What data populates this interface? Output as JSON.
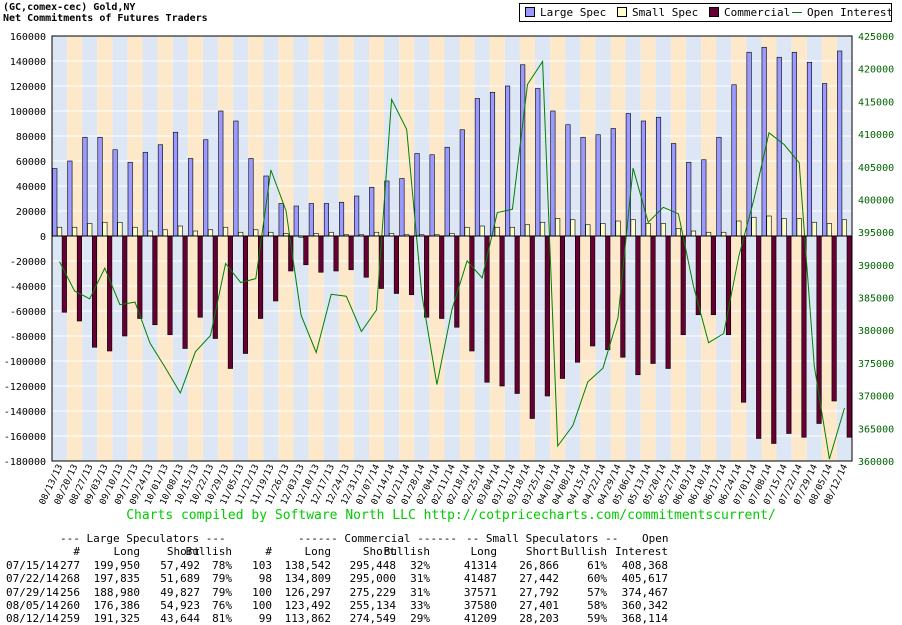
{
  "header": {
    "line1": "(GC,comex-cec) Gold,NY",
    "line2": "Net Commitments of Futures Traders"
  },
  "legend": [
    {
      "label": "Large Spec",
      "color": "#9999ff",
      "kind": "box"
    },
    {
      "label": "Small Spec",
      "color": "#ffffcc",
      "kind": "box"
    },
    {
      "label": "Commercial",
      "color": "#660033",
      "kind": "box"
    },
    {
      "label": "Open Interest",
      "color": "#008000",
      "kind": "line"
    }
  ],
  "credit": "Charts compiled by Software North LLC  http://cotpricecharts.com/commitmentscurrent/",
  "chart_data": {
    "type": "bar",
    "title": "(GC,comex-cec) Gold,NY",
    "subtitle": "Net Commitments of Futures Traders",
    "grid": true,
    "legend_position": "top-right",
    "left_axis": {
      "min": -180000,
      "max": 160000,
      "step": 20000
    },
    "right_axis": {
      "min": 360000,
      "max": 425000,
      "step": 5000
    },
    "x_labels": [
      "08/13/13",
      "08/20/13",
      "08/27/13",
      "09/03/13",
      "09/10/13",
      "09/17/13",
      "09/24/13",
      "10/01/13",
      "10/08/13",
      "10/15/13",
      "10/22/13",
      "10/29/13",
      "11/05/13",
      "11/12/13",
      "11/19/13",
      "11/26/13",
      "12/03/13",
      "12/10/13",
      "12/17/13",
      "12/24/13",
      "12/31/13",
      "01/07/14",
      "01/14/14",
      "01/21/14",
      "01/28/14",
      "02/04/14",
      "02/11/14",
      "02/18/14",
      "02/25/14",
      "03/04/14",
      "03/11/14",
      "03/18/14",
      "03/25/14",
      "04/01/14",
      "04/08/14",
      "04/15/14",
      "04/22/14",
      "04/29/14",
      "05/06/14",
      "05/13/14",
      "05/20/14",
      "05/27/14",
      "06/03/14",
      "06/10/14",
      "06/17/14",
      "06/24/14",
      "07/01/14",
      "07/08/14",
      "07/15/14",
      "07/22/14",
      "07/29/14",
      "08/05/14",
      "08/12/14"
    ],
    "series": [
      {
        "name": "Large Spec",
        "color": "#9999ff",
        "values": [
          54000,
          60000,
          79000,
          79000,
          69000,
          59000,
          67000,
          73000,
          83000,
          62000,
          77000,
          100000,
          92000,
          62000,
          48000,
          26000,
          24000,
          26000,
          26000,
          27000,
          32000,
          39000,
          44000,
          46000,
          66000,
          65000,
          71000,
          85000,
          110000,
          115000,
          120000,
          137000,
          118000,
          100000,
          89000,
          79000,
          81000,
          86000,
          98000,
          92000,
          95000,
          74000,
          59000,
          61000,
          79000,
          121000,
          147000,
          151000,
          143000,
          147000,
          139000,
          122000,
          148000
        ]
      },
      {
        "name": "Small Spec",
        "color": "#ffffcc",
        "values": [
          7000,
          7000,
          10000,
          11000,
          11000,
          7000,
          4000,
          5000,
          8000,
          4000,
          5000,
          7000,
          3000,
          5000,
          3000,
          2000,
          -1000,
          2000,
          3000,
          1000,
          1000,
          3000,
          2000,
          1000,
          1000,
          1000,
          2000,
          7000,
          8000,
          7000,
          7000,
          9000,
          11000,
          14000,
          13000,
          9000,
          10000,
          12000,
          13000,
          10000,
          10000,
          6000,
          4000,
          3000,
          3000,
          12000,
          15000,
          16000,
          14000,
          14000,
          11000,
          10000,
          13000
        ]
      },
      {
        "name": "Commercial",
        "color": "#660033",
        "values": [
          -61000,
          -68000,
          -89000,
          -92000,
          -80000,
          -66000,
          -71000,
          -79000,
          -90000,
          -65000,
          -82000,
          -106000,
          -94000,
          -66000,
          -52000,
          -28000,
          -23000,
          -29000,
          -28000,
          -27000,
          -33000,
          -42000,
          -46000,
          -47000,
          -65000,
          -66000,
          -73000,
          -92000,
          -117000,
          -120000,
          -126000,
          -146000,
          -128000,
          -114000,
          -101000,
          -88000,
          -91000,
          -97000,
          -111000,
          -102000,
          -106000,
          -79000,
          -63000,
          -63000,
          -79000,
          -133000,
          -162000,
          -166000,
          -158000,
          -161000,
          -150000,
          -132000,
          -161000
        ]
      },
      {
        "name": "Open Interest",
        "color": "#008000",
        "values": [
          390500,
          386000,
          384800,
          389500,
          383900,
          384300,
          378000,
          374300,
          370400,
          376700,
          379200,
          390200,
          387300,
          387900,
          404500,
          398300,
          382300,
          376600,
          385500,
          385200,
          379800,
          383100,
          415300,
          410700,
          385500,
          371700,
          383200,
          390600,
          388000,
          398000,
          398500,
          417600,
          421100,
          362300,
          365400,
          372100,
          374200,
          381900,
          404800,
          396500,
          398800,
          397800,
          386700,
          378100,
          379500,
          391300,
          400000,
          410200,
          408400,
          405600,
          374500,
          360300,
          368100
        ]
      }
    ]
  },
  "table": {
    "group_headers": [
      "--- Large Speculators ---",
      "------ Commercial ------",
      "-- Small Speculators --",
      "Open"
    ],
    "columns": [
      "#",
      "Long",
      "Short",
      "Bullish",
      "#",
      "Long",
      "Short",
      "Bullish",
      "Long",
      "Short",
      "Bullish",
      "Interest"
    ],
    "rows": [
      [
        "07/15/14",
        "277",
        "199,950",
        "57,492",
        "78%",
        "103",
        "138,542",
        "295,448",
        "32%",
        "41314",
        "26,866",
        "61%",
        "408,368"
      ],
      [
        "07/22/14",
        "268",
        "197,835",
        "51,689",
        "79%",
        "98",
        "134,809",
        "295,000",
        "31%",
        "41487",
        "27,442",
        "60%",
        "405,617"
      ],
      [
        "07/29/14",
        "256",
        "188,980",
        "49,827",
        "79%",
        "100",
        "126,297",
        "275,229",
        "31%",
        "37571",
        "27,792",
        "57%",
        "374,467"
      ],
      [
        "08/05/14",
        "260",
        "176,386",
        "54,923",
        "76%",
        "100",
        "123,492",
        "255,134",
        "33%",
        "37580",
        "27,401",
        "58%",
        "360,342"
      ],
      [
        "08/12/14",
        "259",
        "191,325",
        "43,644",
        "81%",
        "99",
        "113,862",
        "274,549",
        "29%",
        "41209",
        "28,203",
        "59%",
        "368,114"
      ]
    ]
  }
}
